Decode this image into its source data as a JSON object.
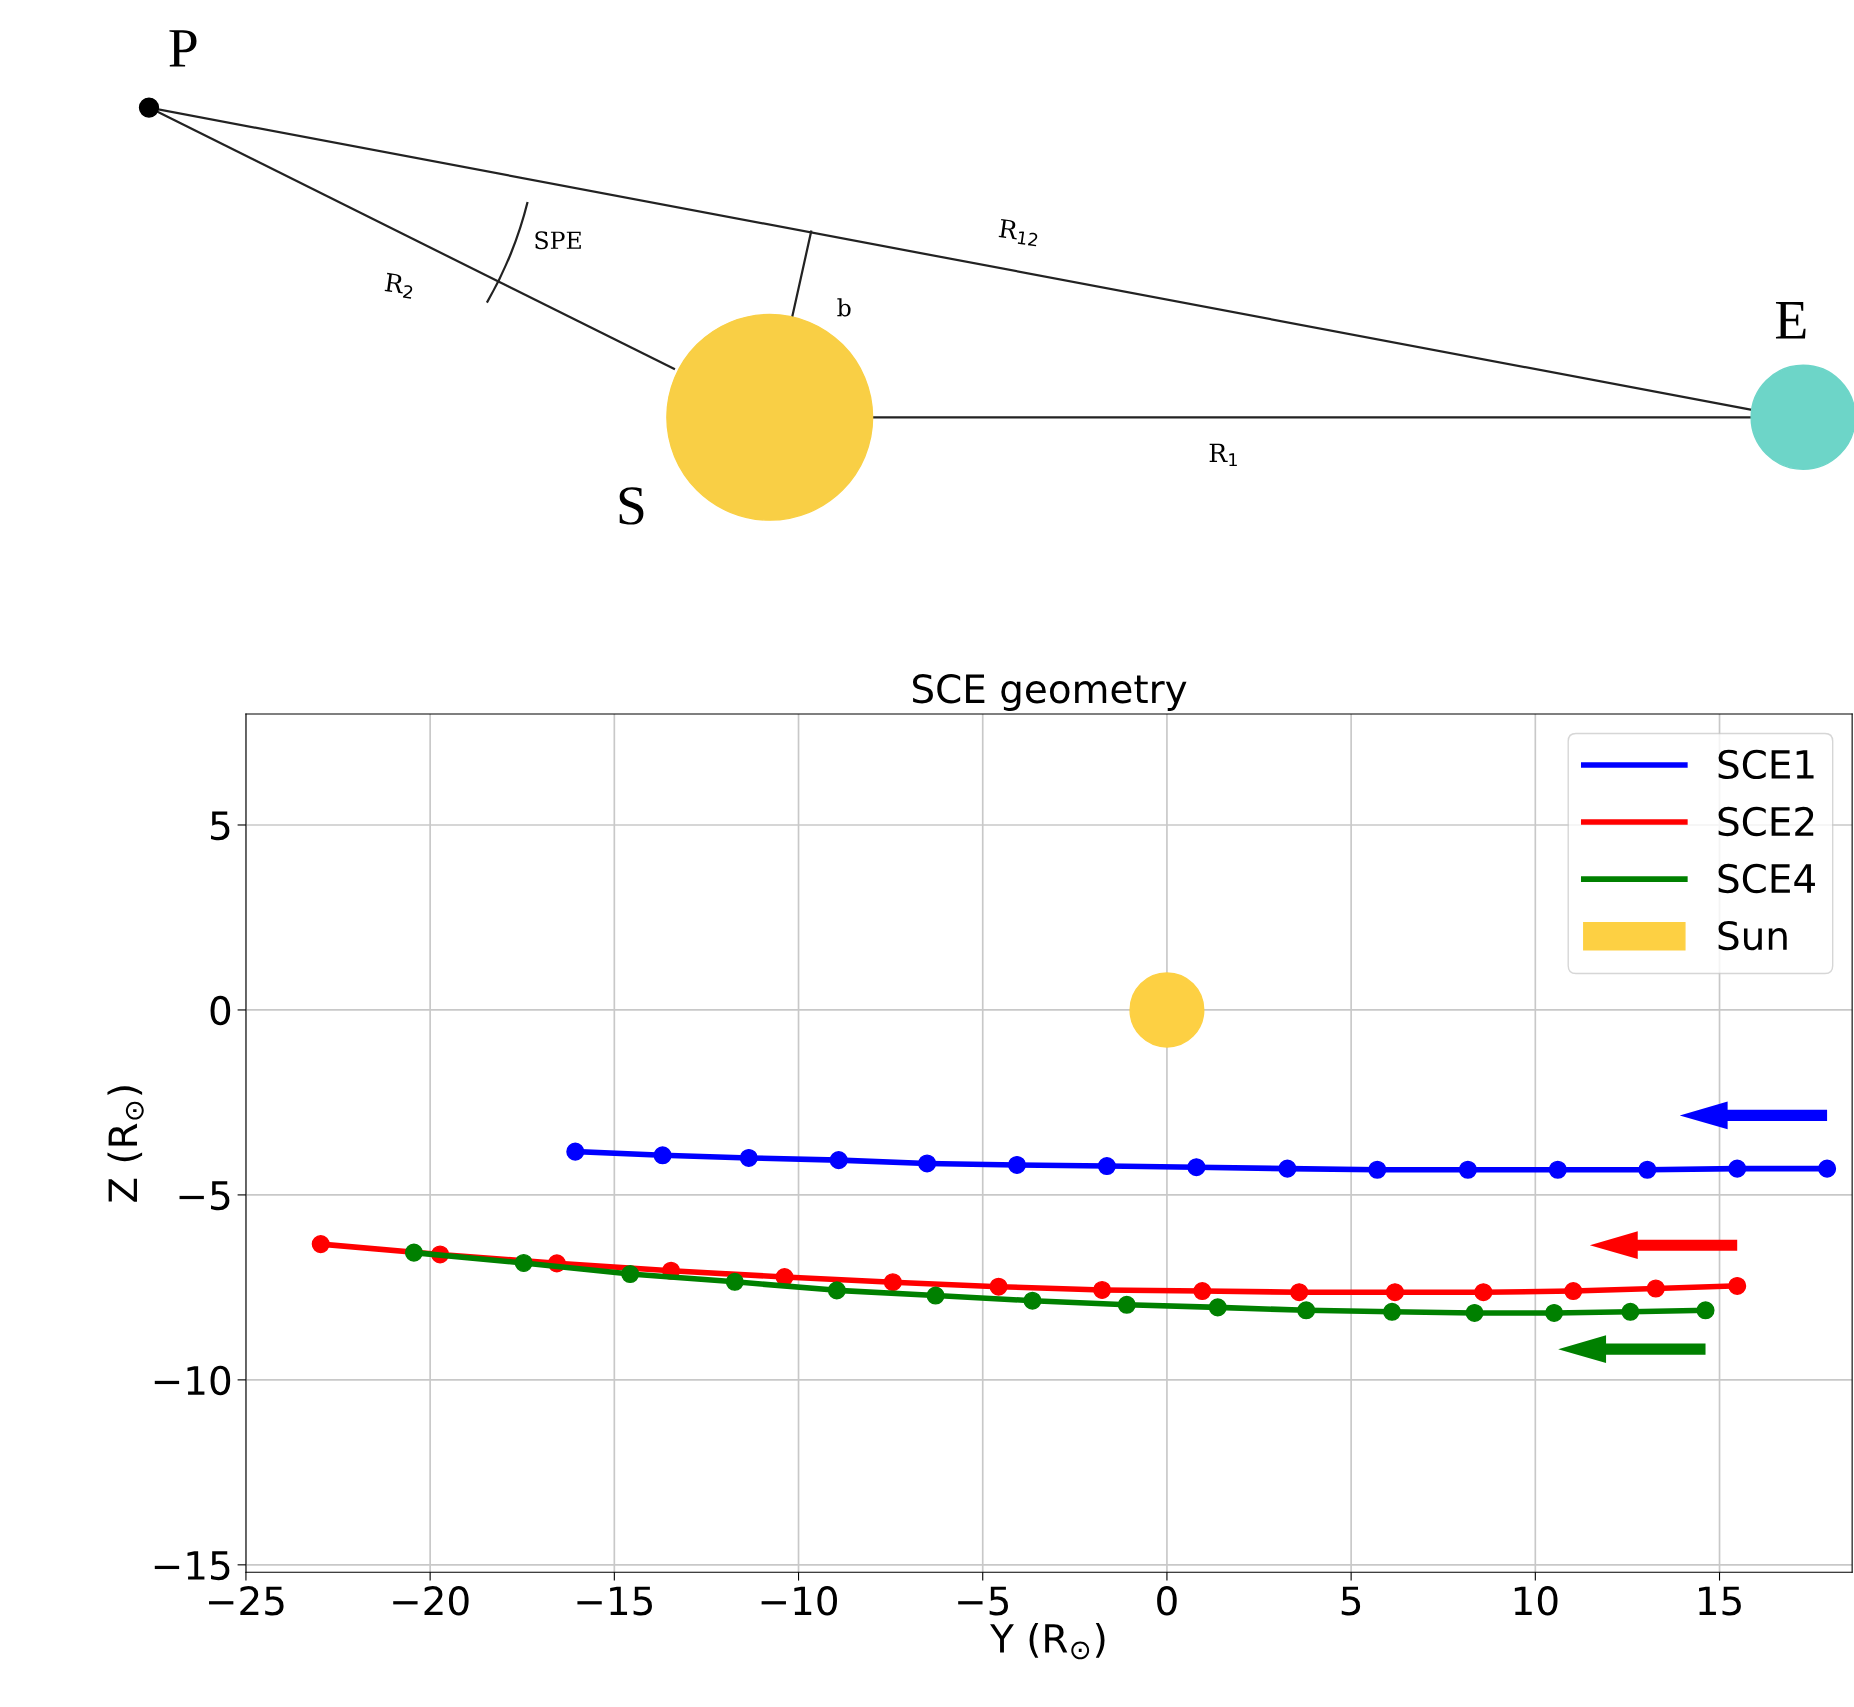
{
  "chart_data": [
    {
      "type": "other",
      "annotations": [
        "P",
        "SPE",
        "R$_{12}$",
        "R$_{2}$",
        "b",
        "E",
        "R$_{1}$",
        "S"
      ]
    },
    {
      "type": "line",
      "title": "SCE geometry",
      "xlabel": "Y (R$_{⊙}$)",
      "ylabel": "Z (R$_{⊙}$)",
      "xlim": [
        -25,
        18.6
      ],
      "ylim": [
        -15.2,
        8
      ],
      "xticks": [
        {
          "value": -25,
          "label": "−25"
        },
        {
          "value": -20,
          "label": "−20"
        },
        {
          "value": -15,
          "label": "−15"
        },
        {
          "value": -10,
          "label": "−10"
        },
        {
          "value": -5,
          "label": "−5"
        },
        0,
        5,
        10,
        15
      ],
      "yticks": [
        {
          "value": -15,
          "label": "−15"
        },
        {
          "value": -10,
          "label": "−10"
        },
        {
          "value": -5,
          "label": "−5"
        },
        0,
        5
      ],
      "grid": true,
      "legend": "top right",
      "marker": "circle",
      "line_style": "solid",
      "series": [
        {
          "name": "SCE1",
          "color": "#0000ff",
          "x": [
            -16.06,
            -13.69,
            -11.35,
            -8.91,
            -6.51,
            -4.07,
            -1.63,
            0.8,
            3.27,
            5.71,
            8.17,
            10.61,
            13.04,
            15.48,
            17.92
          ],
          "values": [
            -3.83,
            -3.93,
            -4.0,
            -4.06,
            -4.15,
            -4.19,
            -4.22,
            -4.25,
            -4.29,
            -4.32,
            -4.32,
            -4.32,
            -4.32,
            -4.29,
            -4.29
          ]
        },
        {
          "name": "SCE2",
          "color": "#ff0000",
          "x": [
            -22.97,
            -19.73,
            -16.56,
            -13.46,
            -10.38,
            -7.44,
            -4.57,
            -1.76,
            0.96,
            3.59,
            6.19,
            8.59,
            11.03,
            13.27,
            15.48
          ],
          "values": [
            -6.33,
            -6.61,
            -6.85,
            -7.05,
            -7.22,
            -7.36,
            -7.48,
            -7.57,
            -7.6,
            -7.63,
            -7.63,
            -7.63,
            -7.6,
            -7.53,
            -7.46
          ]
        },
        {
          "name": "SCE4",
          "color": "#008000",
          "x": [
            -20.44,
            -17.46,
            -14.57,
            -11.73,
            -8.96,
            -6.28,
            -3.65,
            -1.09,
            1.38,
            3.78,
            6.11,
            8.35,
            10.51,
            12.58,
            14.62
          ],
          "values": [
            -6.56,
            -6.84,
            -7.14,
            -7.35,
            -7.58,
            -7.72,
            -7.86,
            -7.97,
            -8.04,
            -8.12,
            -8.16,
            -8.19,
            -8.19,
            -8.16,
            -8.12
          ]
        },
        {
          "name": "Sun",
          "type": "scatter",
          "color": "#fdd043",
          "x": [
            0
          ],
          "values": [
            0
          ]
        }
      ]
    }
  ]
}
